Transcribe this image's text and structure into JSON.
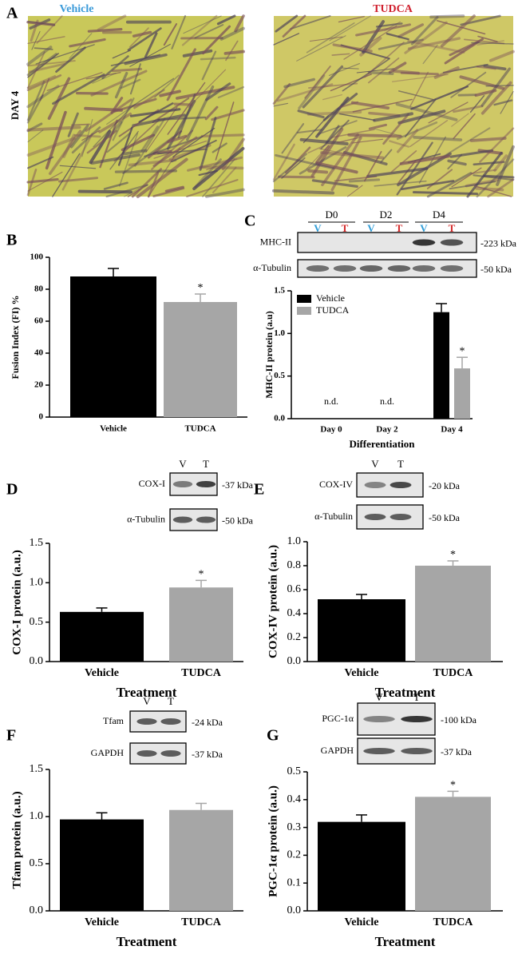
{
  "figure_a": {
    "panel": "A",
    "titles": [
      "Vehicle",
      "TUDCA"
    ],
    "row_label": "DAY 4"
  },
  "chart_data": [
    {
      "type": "bar",
      "panel": "B",
      "ylabel": "Fusion Index (FI) %",
      "categories": [
        "Vehicle",
        "TUDCA"
      ],
      "values": [
        88,
        72
      ],
      "errors": [
        5,
        5
      ],
      "colors": [
        "#000000",
        "#a6a6a6"
      ],
      "ylim": [
        0,
        100
      ],
      "yticks": [
        0,
        20,
        40,
        60,
        80,
        100
      ],
      "star": "*"
    },
    {
      "type": "bar",
      "panel": "C",
      "ylabel": "MHC-II protein (a.u)",
      "xlabel": "Differentiation",
      "categories": [
        "Day 0",
        "Day 2",
        "Day 4"
      ],
      "series": [
        {
          "name": "Vehicle",
          "color": "#000000",
          "values": [
            null,
            null,
            1.25
          ],
          "errors": [
            null,
            null,
            0.1
          ]
        },
        {
          "name": "TUDCA",
          "color": "#a6a6a6",
          "values": [
            null,
            null,
            0.59
          ],
          "errors": [
            null,
            null,
            0.13
          ]
        }
      ],
      "annotations": [
        "n.d.",
        "n.d."
      ],
      "star": "*",
      "ylim": [
        0,
        1.5
      ],
      "yticks": [
        {
          "value": 0,
          "label": "0.0"
        },
        0.5,
        {
          "value": 1,
          "label": "1.0"
        },
        1.5
      ],
      "blot": {
        "groups": [
          "D0",
          "D2",
          "D4"
        ],
        "lanes": [
          "V",
          "T",
          "V",
          "T",
          "V",
          "T"
        ],
        "rows": [
          {
            "label": "MHC-II",
            "size": "-223 kDa"
          },
          {
            "label": "α-Tubulin",
            "size": "-50 kDa"
          }
        ]
      }
    },
    {
      "type": "bar",
      "panel": "D",
      "ylabel": "COX-I protein (a.u.)",
      "xlabel": "Treatment",
      "categories": [
        "Vehicle",
        "TUDCA"
      ],
      "values": [
        0.63,
        0.94
      ],
      "errors": [
        0.05,
        0.09
      ],
      "colors": [
        "#000000",
        "#a6a6a6"
      ],
      "star": "*",
      "ylim": [
        0,
        1.5
      ],
      "yticks": [
        {
          "value": 0,
          "label": "0.0"
        },
        0.5,
        {
          "value": 1,
          "label": "1.0"
        },
        1.5
      ],
      "blot": {
        "lanes": [
          "V",
          "T"
        ],
        "rows": [
          {
            "label": "COX-I",
            "size": "-37 kDa"
          },
          {
            "label": "α-Tubulin",
            "size": "-50 kDa"
          }
        ]
      }
    },
    {
      "type": "bar",
      "panel": "E",
      "ylabel": "COX-IV protein (a.u.)",
      "xlabel": "Treatment",
      "categories": [
        "Vehicle",
        "TUDCA"
      ],
      "values": [
        0.52,
        0.8
      ],
      "errors": [
        0.04,
        0.04
      ],
      "colors": [
        "#000000",
        "#a6a6a6"
      ],
      "star": "*",
      "ylim": [
        0,
        1
      ],
      "yticks": [
        {
          "value": 0,
          "label": "0.0"
        },
        0.2,
        0.4,
        0.6,
        0.8,
        {
          "value": 1,
          "label": "1.0"
        }
      ],
      "blot": {
        "lanes": [
          "V",
          "T"
        ],
        "rows": [
          {
            "label": "COX-IV",
            "size": "-20 kDa"
          },
          {
            "label": "α-Tubulin",
            "size": "-50 kDa"
          }
        ]
      }
    },
    {
      "type": "bar",
      "panel": "F",
      "ylabel": "Tfam protein (a.u.)",
      "xlabel": "Treatment",
      "categories": [
        "Vehicle",
        "TUDCA"
      ],
      "values": [
        0.97,
        1.07
      ],
      "errors": [
        0.07,
        0.07
      ],
      "colors": [
        "#000000",
        "#a6a6a6"
      ],
      "ylim": [
        0,
        1.5
      ],
      "yticks": [
        {
          "value": 0,
          "label": "0.0"
        },
        0.5,
        {
          "value": 1,
          "label": "1.0"
        },
        1.5
      ],
      "blot": {
        "lanes": [
          "V",
          "T"
        ],
        "rows": [
          {
            "label": "Tfam",
            "size": "-24 kDa"
          },
          {
            "label": "GAPDH",
            "size": "-37 kDa"
          }
        ]
      }
    },
    {
      "type": "bar",
      "panel": "G",
      "ylabel": "PGC-1α protein (a.u.)",
      "xlabel": "Treatment",
      "categories": [
        "Vehicle",
        "TUDCA"
      ],
      "values": [
        0.32,
        0.41
      ],
      "errors": [
        0.025,
        0.02
      ],
      "colors": [
        "#000000",
        "#a6a6a6"
      ],
      "star": "*",
      "ylim": [
        0,
        0.5
      ],
      "yticks": [
        {
          "value": 0,
          "label": "0.0"
        },
        0.1,
        0.2,
        0.3,
        0.4,
        0.5
      ],
      "blot": {
        "lanes": [
          "V",
          "T"
        ],
        "rows": [
          {
            "label": "PGC-1α",
            "size": "-100 kDa"
          },
          {
            "label": "GAPDH",
            "size": "-37 kDa"
          }
        ]
      }
    }
  ]
}
